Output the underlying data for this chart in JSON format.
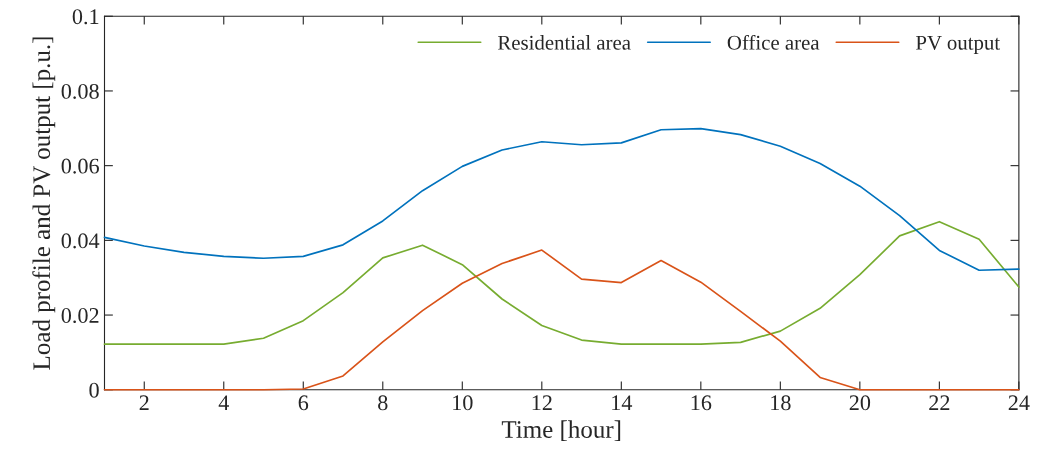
{
  "chart_data": {
    "type": "line",
    "xlabel": "Time [hour]",
    "ylabel": "Load profile and PV output [p.u.]",
    "x": [
      1,
      2,
      3,
      4,
      5,
      6,
      7,
      8,
      9,
      10,
      11,
      12,
      13,
      14,
      15,
      16,
      17,
      18,
      19,
      20,
      21,
      22,
      23,
      24
    ],
    "series": [
      {
        "name": "Residential area",
        "color": "#77ac30",
        "values": [
          0.0122,
          0.0122,
          0.0122,
          0.0122,
          0.0138,
          0.0185,
          0.026,
          0.0353,
          0.0387,
          0.0335,
          0.0243,
          0.0172,
          0.0133,
          0.0122,
          0.0122,
          0.0122,
          0.0127,
          0.0157,
          0.0218,
          0.0308,
          0.0412,
          0.045,
          0.0403,
          0.0275
        ]
      },
      {
        "name": "Office area",
        "color": "#0072bd",
        "values": [
          0.0408,
          0.0385,
          0.0368,
          0.0357,
          0.0352,
          0.0357,
          0.0388,
          0.0452,
          0.0533,
          0.0598,
          0.0642,
          0.0664,
          0.0656,
          0.0661,
          0.0696,
          0.0699,
          0.0683,
          0.0652,
          0.0606,
          0.0545,
          0.0466,
          0.0373,
          0.032,
          0.0323
        ]
      },
      {
        "name": "PV output",
        "color": "#d95319",
        "values": [
          0,
          0,
          0,
          0,
          0,
          0.0002,
          0.0037,
          0.0128,
          0.0212,
          0.0285,
          0.0338,
          0.0374,
          0.0296,
          0.0287,
          0.0346,
          0.0288,
          0.021,
          0.013,
          0.0033,
          0,
          0,
          0,
          0,
          0
        ]
      }
    ],
    "xlim": [
      1,
      24
    ],
    "xticks": [
      2,
      4,
      6,
      8,
      10,
      12,
      14,
      16,
      18,
      20,
      22,
      24
    ],
    "ylim": [
      0,
      0.1
    ],
    "yticks": [
      0,
      0.02,
      0.04,
      0.06,
      0.08,
      0.1
    ],
    "grid": false,
    "legend": "top right",
    "marker": "none",
    "line_style": "solid"
  }
}
